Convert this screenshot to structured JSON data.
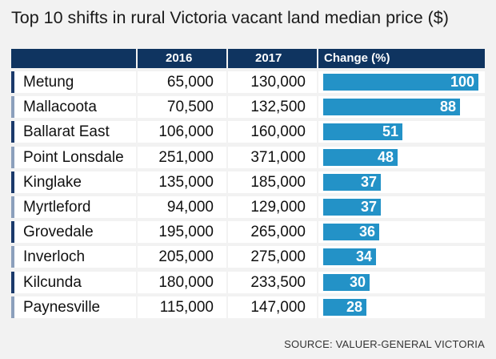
{
  "title": "Top 10 shifts in rural Victoria vacant land median price ($)",
  "header": {
    "col_2016": "2016",
    "col_2017": "2017",
    "col_change": "Change (%)"
  },
  "source": "SOURCE: VALUER-GENERAL VICTORIA",
  "colors": {
    "header_bg": "#0f3460",
    "bar": "#2392c7",
    "accent_dark": "#1b3a6b",
    "accent_light": "#8ca0bc",
    "row_bg": "#ffffff",
    "page_bg": "#f2f2f2"
  },
  "chart_data": {
    "type": "table",
    "title": "Top 10 shifts in rural Victoria vacant land median price ($)",
    "columns": [
      "",
      "2016",
      "2017",
      "Change (%)"
    ],
    "rows": [
      {
        "name": "Metung",
        "v2016": "65,000",
        "v2017": "130,000",
        "change": 100
      },
      {
        "name": "Mallacoota",
        "v2016": "70,500",
        "v2017": "132,500",
        "change": 88
      },
      {
        "name": "Ballarat East",
        "v2016": "106,000",
        "v2017": "160,000",
        "change": 51
      },
      {
        "name": "Point Lonsdale",
        "v2016": "251,000",
        "v2017": "371,000",
        "change": 48
      },
      {
        "name": "Kinglake",
        "v2016": "135,000",
        "v2017": "185,000",
        "change": 37
      },
      {
        "name": "Myrtleford",
        "v2016": "94,000",
        "v2017": "129,000",
        "change": 37
      },
      {
        "name": "Grovedale",
        "v2016": "195,000",
        "v2017": "265,000",
        "change": 36
      },
      {
        "name": "Inverloch",
        "v2016": "205,000",
        "v2017": "275,000",
        "change": 34
      },
      {
        "name": "Kilcunda",
        "v2016": "180,000",
        "v2017": "233,500",
        "change": 30
      },
      {
        "name": "Paynesville",
        "v2016": "115,000",
        "v2017": "147,000",
        "change": 28
      }
    ],
    "change_max": 100
  }
}
